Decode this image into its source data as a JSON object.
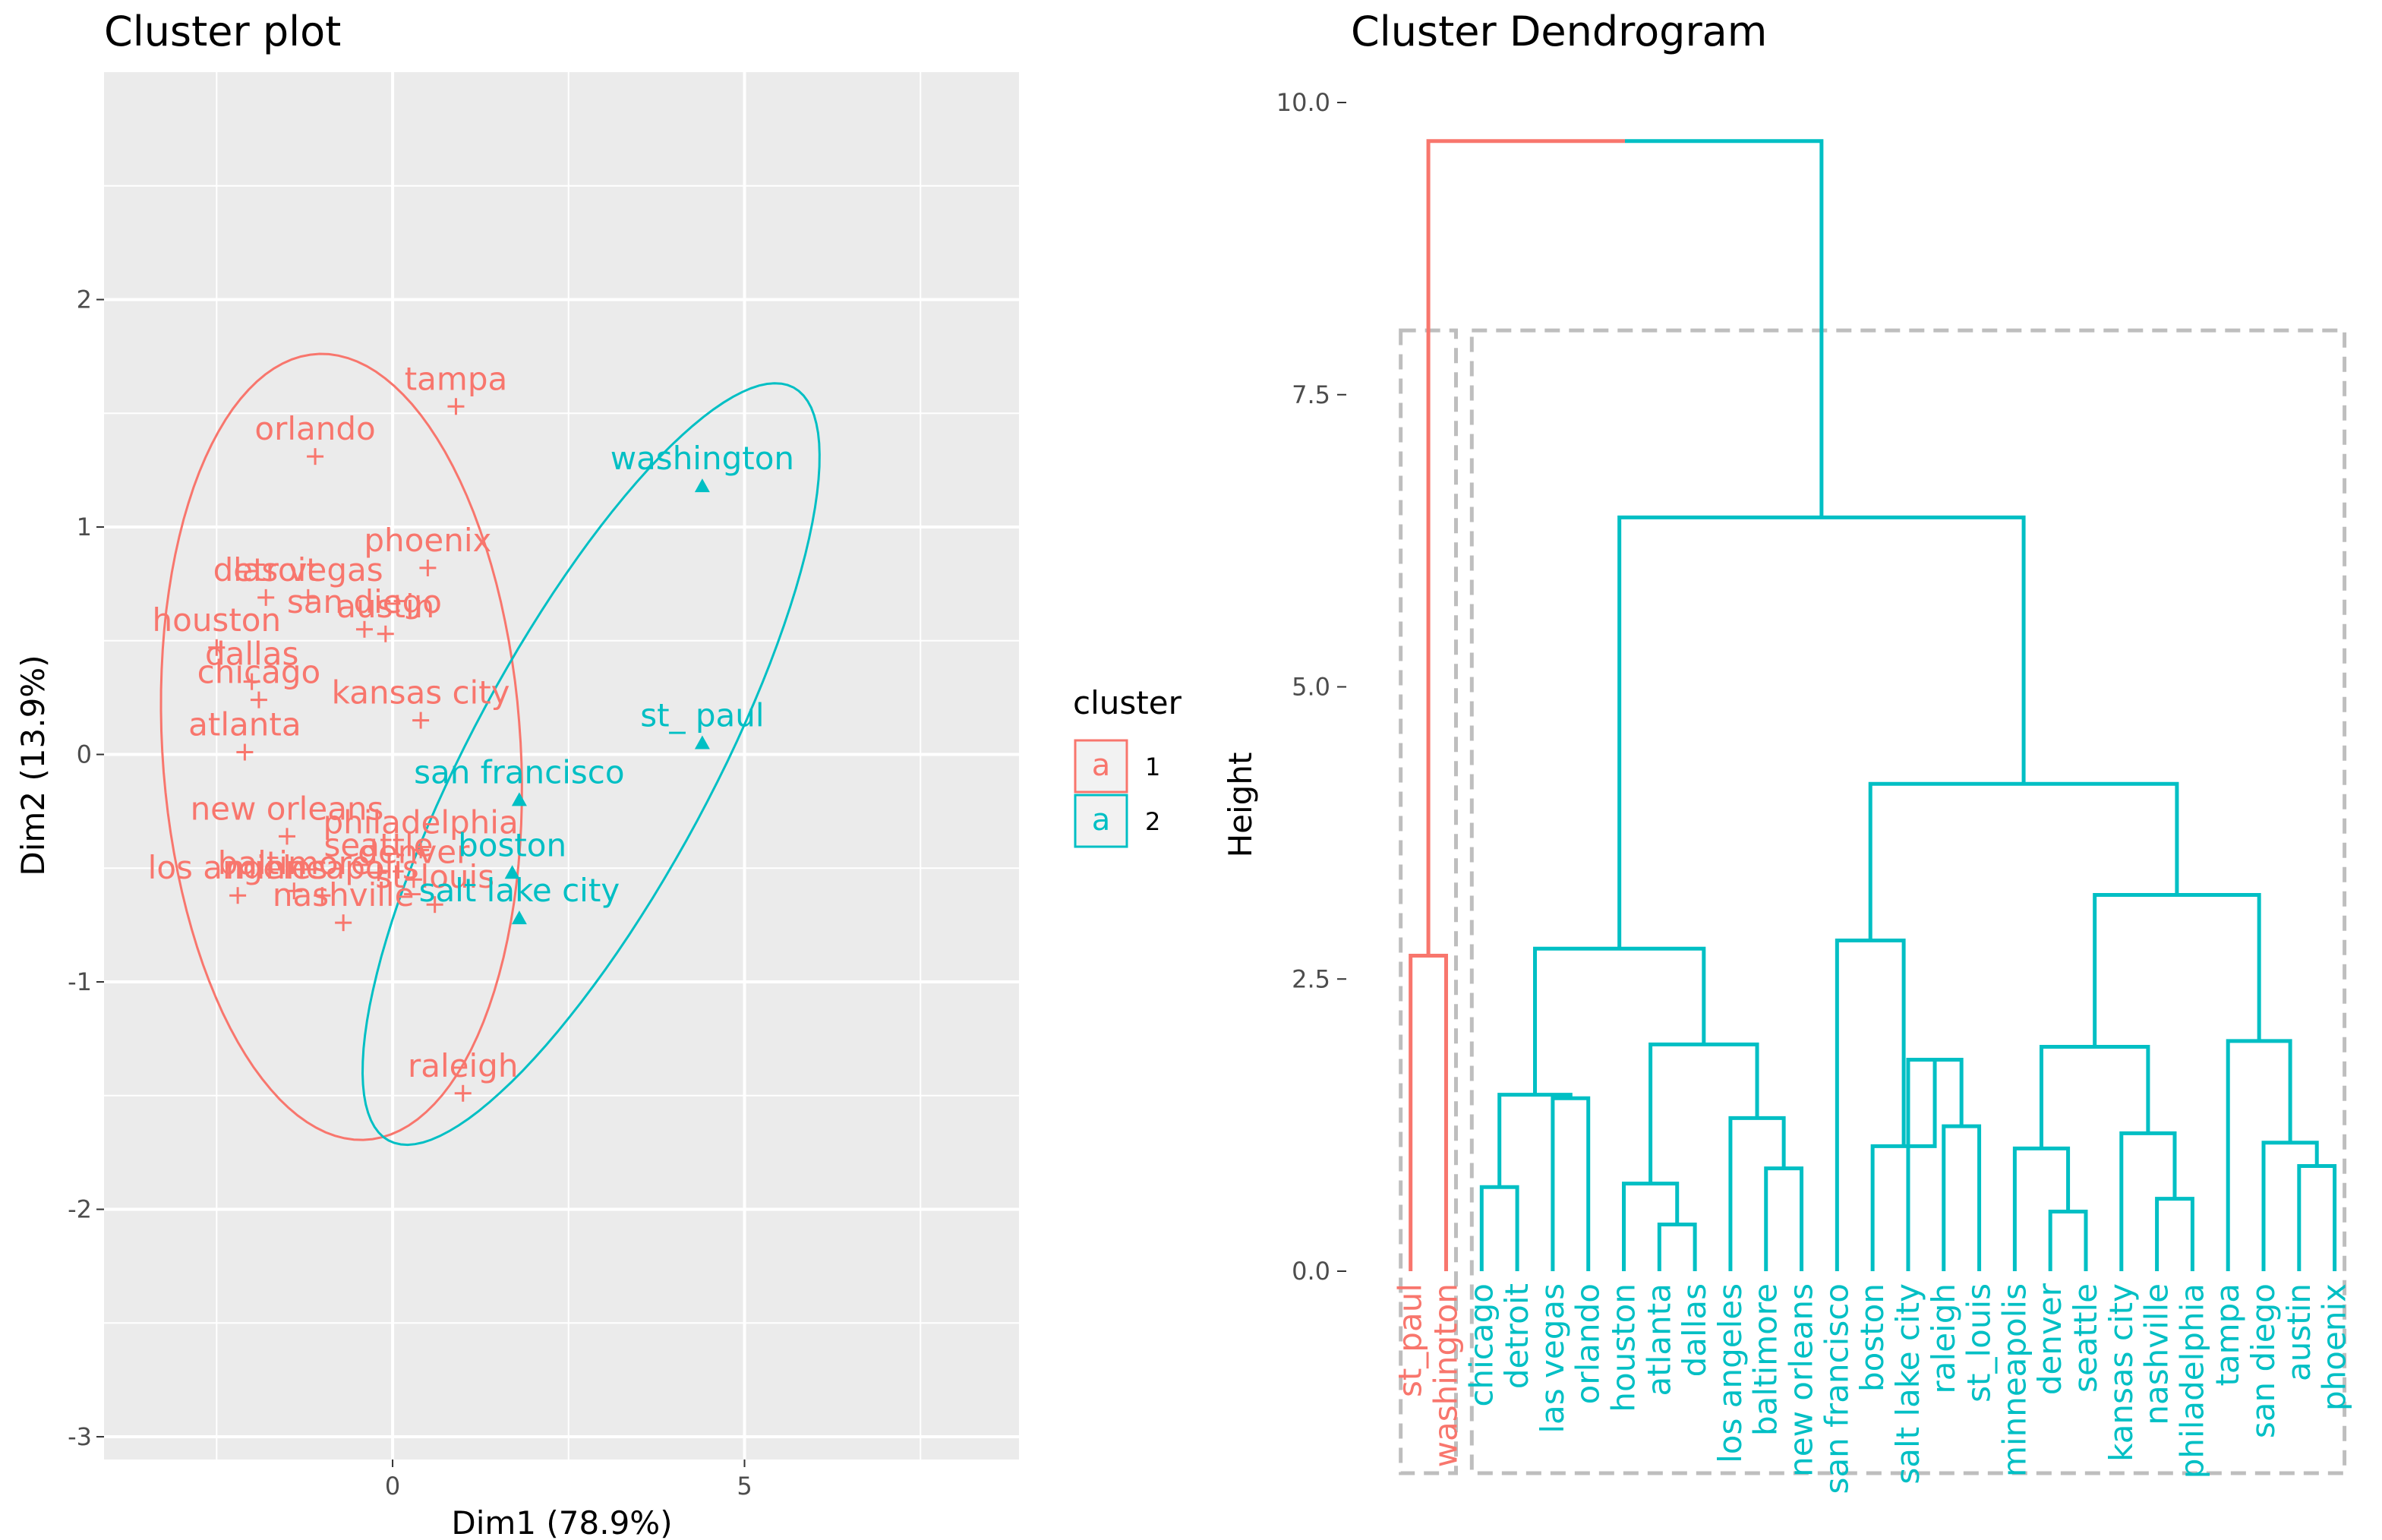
{
  "colors": {
    "cluster1": "#F8766D",
    "cluster2": "#00BFC4",
    "panel": "#EBEBEB",
    "grid": "#ffffff",
    "box": "#BEBEBE"
  },
  "chart_data": [
    {
      "type": "scatter",
      "title": "Cluster plot",
      "xlabel": "Dim1 (78.9%)",
      "ylabel": "Dim2 (13.9%)",
      "xlim": [
        -4.1,
        8.9
      ],
      "ylim": [
        -3.1,
        3.0
      ],
      "xticks": [
        "0",
        "5"
      ],
      "xtick_values": [
        0,
        5
      ],
      "yticks": [
        "-3",
        "-2",
        "-1",
        "0",
        "1",
        "2"
      ],
      "ytick_values": [
        -3,
        -2,
        -1,
        0,
        1,
        2
      ],
      "grid": true,
      "legend": {
        "title": "cluster",
        "position": "right",
        "items": [
          {
            "label": "1",
            "symbol": "a",
            "cluster": 1
          },
          {
            "label": "2",
            "symbol": "a",
            "cluster": 2
          }
        ]
      },
      "points": [
        {
          "name": "tampa",
          "x": 0.9,
          "y": 1.53,
          "cluster": 1
        },
        {
          "name": "orlando",
          "x": -1.1,
          "y": 1.31,
          "cluster": 1
        },
        {
          "name": "phoenix",
          "x": 0.5,
          "y": 0.82,
          "cluster": 1
        },
        {
          "name": "detroit",
          "x": -1.8,
          "y": 0.69,
          "cluster": 1
        },
        {
          "name": "las vegas",
          "x": -1.2,
          "y": 0.69,
          "cluster": 1
        },
        {
          "name": "san diego",
          "x": -0.4,
          "y": 0.55,
          "cluster": 1
        },
        {
          "name": "austin",
          "x": -0.1,
          "y": 0.53,
          "cluster": 1
        },
        {
          "name": "houston",
          "x": -2.5,
          "y": 0.47,
          "cluster": 1
        },
        {
          "name": "dallas",
          "x": -2.0,
          "y": 0.32,
          "cluster": 1
        },
        {
          "name": "chicago",
          "x": -1.9,
          "y": 0.24,
          "cluster": 1
        },
        {
          "name": "kansas city",
          "x": 0.4,
          "y": 0.15,
          "cluster": 1
        },
        {
          "name": "atlanta",
          "x": -2.1,
          "y": 0.01,
          "cluster": 1
        },
        {
          "name": "new orleans",
          "x": -1.5,
          "y": -0.36,
          "cluster": 1
        },
        {
          "name": "philadelphia",
          "x": 0.4,
          "y": -0.42,
          "cluster": 1
        },
        {
          "name": "seattle",
          "x": -0.2,
          "y": -0.52,
          "cluster": 1
        },
        {
          "name": "denver",
          "x": 0.3,
          "y": -0.55,
          "cluster": 1
        },
        {
          "name": "los angeles",
          "x": -2.2,
          "y": -0.62,
          "cluster": 1
        },
        {
          "name": "baltimore",
          "x": -1.4,
          "y": -0.6,
          "cluster": 1
        },
        {
          "name": "minneapolis",
          "x": -1.0,
          "y": -0.62,
          "cluster": 1
        },
        {
          "name": "st_louis",
          "x": 0.6,
          "y": -0.66,
          "cluster": 1
        },
        {
          "name": "nashville",
          "x": -0.7,
          "y": -0.74,
          "cluster": 1
        },
        {
          "name": "raleigh",
          "x": 1.0,
          "y": -1.49,
          "cluster": 1
        },
        {
          "name": "washington",
          "x": 4.4,
          "y": 1.18,
          "cluster": 2
        },
        {
          "name": "st_ paul",
          "x": 4.4,
          "y": 0.05,
          "cluster": 2
        },
        {
          "name": "san francisco",
          "x": 1.8,
          "y": -0.2,
          "cluster": 2
        },
        {
          "name": "boston",
          "x": 1.7,
          "y": -0.52,
          "cluster": 2
        },
        {
          "name": "salt lake city",
          "x": 1.8,
          "y": -0.72,
          "cluster": 2
        }
      ],
      "point_labels": [
        "tampa",
        "orlando",
        "phoenix",
        "detroit",
        "las vegas",
        "san diego",
        "austin",
        "houston",
        "dallas",
        "chicago",
        "kansas city",
        "atlanta",
        "new orleans",
        "philadelphia",
        "seattle",
        "denver",
        "los angeles",
        "baltimore",
        "minneapolis",
        "st_louis",
        "nashville",
        "raleigh",
        "washington",
        "st_ paul",
        "san francisco",
        "boston",
        "salt lake city"
      ]
    },
    {
      "type": "dendrogram",
      "title": "Cluster Dendrogram",
      "ylabel": "Height",
      "ylim": [
        0,
        10
      ],
      "yticks": [
        "0.0",
        "2.5",
        "5.0",
        "7.5",
        "10.0"
      ],
      "ytick_values": [
        0,
        2.5,
        5,
        7.5,
        10
      ],
      "leaves": [
        {
          "name": "st_paul",
          "cluster": 1
        },
        {
          "name": "washington",
          "cluster": 1
        },
        {
          "name": "chicago",
          "cluster": 2
        },
        {
          "name": "detroit",
          "cluster": 2
        },
        {
          "name": "las vegas",
          "cluster": 2
        },
        {
          "name": "orlando",
          "cluster": 2
        },
        {
          "name": "houston",
          "cluster": 2
        },
        {
          "name": "atlanta",
          "cluster": 2
        },
        {
          "name": "dallas",
          "cluster": 2
        },
        {
          "name": "los angeles",
          "cluster": 2
        },
        {
          "name": "baltimore",
          "cluster": 2
        },
        {
          "name": "new orleans",
          "cluster": 2
        },
        {
          "name": "san francisco",
          "cluster": 2
        },
        {
          "name": "boston",
          "cluster": 2
        },
        {
          "name": "salt lake city",
          "cluster": 2
        },
        {
          "name": "raleigh",
          "cluster": 2
        },
        {
          "name": "st_louis",
          "cluster": 2
        },
        {
          "name": "minneapolis",
          "cluster": 2
        },
        {
          "name": "denver",
          "cluster": 2
        },
        {
          "name": "seattle",
          "cluster": 2
        },
        {
          "name": "kansas city",
          "cluster": 2
        },
        {
          "name": "nashville",
          "cluster": 2
        },
        {
          "name": "philadelphia",
          "cluster": 2
        },
        {
          "name": "tampa",
          "cluster": 2
        },
        {
          "name": "san diego",
          "cluster": 2
        },
        {
          "name": "austin",
          "cluster": 2
        },
        {
          "name": "phoenix",
          "cluster": 2
        }
      ],
      "merges": [
        {
          "a": 0,
          "b": 1,
          "h": 2.7,
          "cluster": 1
        },
        {
          "a": 2,
          "b": 3,
          "h": 0.72,
          "cluster": 2
        },
        {
          "a": 4,
          "b": 5,
          "h": 1.48,
          "cluster": 2
        },
        {
          "a": -2,
          "b": -3,
          "h": 1.51,
          "cluster": 2
        },
        {
          "a": 7,
          "b": 8,
          "h": 0.4,
          "cluster": 2
        },
        {
          "a": 6,
          "b": -5,
          "h": 0.75,
          "cluster": 2
        },
        {
          "a": 10,
          "b": 11,
          "h": 0.88,
          "cluster": 2
        },
        {
          "a": 9,
          "b": -7,
          "h": 1.31,
          "cluster": 2
        },
        {
          "a": -6,
          "b": -8,
          "h": 1.94,
          "cluster": 2
        },
        {
          "a": -4,
          "b": -9,
          "h": 2.76,
          "cluster": 2
        },
        {
          "a": 15,
          "b": 16,
          "h": 1.24,
          "cluster": 2
        },
        {
          "a": 14,
          "b": -11,
          "h": 1.81,
          "cluster": 2
        },
        {
          "a": 13,
          "b": -12,
          "h": 1.07,
          "cluster": 2
        },
        {
          "a": 12,
          "b": -13,
          "h": 2.83,
          "cluster": 2
        },
        {
          "a": 18,
          "b": 19,
          "h": 0.51,
          "cluster": 2
        },
        {
          "a": 17,
          "b": -15,
          "h": 1.05,
          "cluster": 2
        },
        {
          "a": 21,
          "b": 22,
          "h": 0.62,
          "cluster": 2
        },
        {
          "a": 20,
          "b": -17,
          "h": 1.18,
          "cluster": 2
        },
        {
          "a": -16,
          "b": -18,
          "h": 1.92,
          "cluster": 2
        },
        {
          "a": 25,
          "b": 26,
          "h": 0.9,
          "cluster": 2
        },
        {
          "a": 24,
          "b": -20,
          "h": 1.1,
          "cluster": 2
        },
        {
          "a": 23,
          "b": -21,
          "h": 1.97,
          "cluster": 2
        },
        {
          "a": -19,
          "b": -22,
          "h": 3.22,
          "cluster": 2
        },
        {
          "a": -14,
          "b": -23,
          "h": 4.17,
          "cluster": 2
        },
        {
          "a": -10,
          "b": -24,
          "h": 6.45,
          "cluster": 2
        },
        {
          "a": -1,
          "b": -25,
          "h": 9.67,
          "cluster": 0
        }
      ]
    }
  ]
}
